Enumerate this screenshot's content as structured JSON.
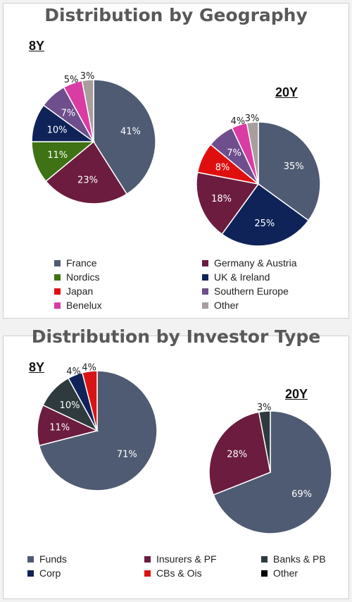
{
  "chart_data": [
    {
      "type": "pie",
      "title": "Distribution by Geography",
      "pies": [
        {
          "label": "8Y",
          "slices": [
            {
              "name": "France",
              "value": 41,
              "label": "41%",
              "color": "#4f5b73"
            },
            {
              "name": "Germany & Austria",
              "value": 23,
              "label": "23%",
              "color": "#6b1c3f"
            },
            {
              "name": "Nordics",
              "value": 11,
              "label": "11%",
              "color": "#3f7214"
            },
            {
              "name": "UK & Ireland",
              "value": 10,
              "label": "10%",
              "color": "#0f2359"
            },
            {
              "name": "Southern Europe",
              "value": 7,
              "label": "7%",
              "color": "#6e4e8c"
            },
            {
              "name": "Benelux",
              "value": 5,
              "label": "5%",
              "color": "#d93ca3"
            },
            {
              "name": "Other",
              "value": 3,
              "label": "3%",
              "color": "#a89e9e"
            }
          ]
        },
        {
          "label": "20Y",
          "slices": [
            {
              "name": "France",
              "value": 35,
              "label": "35%",
              "color": "#4f5b73"
            },
            {
              "name": "UK & Ireland",
              "value": 25,
              "label": "25%",
              "color": "#0f2359"
            },
            {
              "name": "Germany & Austria",
              "value": 18,
              "label": "18%",
              "color": "#6b1c3f"
            },
            {
              "name": "Japan",
              "value": 8,
              "label": "8%",
              "color": "#e00f0f"
            },
            {
              "name": "Southern Europe",
              "value": 7,
              "label": "7%",
              "color": "#6e4e8c"
            },
            {
              "name": "Benelux",
              "value": 4,
              "label": "4%",
              "color": "#d93ca3"
            },
            {
              "name": "Other",
              "value": 3,
              "label": "3%",
              "color": "#a89e9e"
            }
          ]
        }
      ],
      "legend": [
        {
          "name": "France",
          "color": "#4f5b73"
        },
        {
          "name": "Germany & Austria",
          "color": "#6b1c3f"
        },
        {
          "name": "Nordics",
          "color": "#3f7214"
        },
        {
          "name": "UK & Ireland",
          "color": "#0f2359"
        },
        {
          "name": "Japan",
          "color": "#e00f0f"
        },
        {
          "name": "Southern Europe",
          "color": "#6e4e8c"
        },
        {
          "name": "Benelux",
          "color": "#d93ca3"
        },
        {
          "name": "Other",
          "color": "#a89e9e"
        }
      ],
      "legend_placement": "bottom"
    },
    {
      "type": "pie",
      "title": "Distribution by Investor Type",
      "pies": [
        {
          "label": "8Y",
          "slices": [
            {
              "name": "Funds",
              "value": 71,
              "label": "71%",
              "color": "#4f5b73"
            },
            {
              "name": "Insurers & PF",
              "value": 11,
              "label": "11%",
              "color": "#6b1c3f"
            },
            {
              "name": "Banks & PB",
              "value": 10,
              "label": "10%",
              "color": "#2e3a3e"
            },
            {
              "name": "Corp",
              "value": 4,
              "label": "4%",
              "color": "#0f2359"
            },
            {
              "name": "CBs & Ois",
              "value": 4,
              "label": "4%",
              "color": "#d81414"
            }
          ]
        },
        {
          "label": "20Y",
          "slices": [
            {
              "name": "Funds",
              "value": 69,
              "label": "69%",
              "color": "#4f5b73"
            },
            {
              "name": "Insurers & PF",
              "value": 28,
              "label": "28%",
              "color": "#6b1c3f"
            },
            {
              "name": "Banks & PB",
              "value": 3,
              "label": "3%",
              "color": "#2e3a3e"
            }
          ]
        }
      ],
      "legend": [
        {
          "name": "Funds",
          "color": "#4f5b73"
        },
        {
          "name": "Insurers & PF",
          "color": "#6b1c3f"
        },
        {
          "name": "Banks & PB",
          "color": "#2e3a3e"
        },
        {
          "name": "Corp",
          "color": "#0f2359"
        },
        {
          "name": "CBs & Ois",
          "color": "#d81414"
        },
        {
          "name": "Other",
          "color": "#000000"
        }
      ],
      "legend_placement": "bottom"
    }
  ]
}
